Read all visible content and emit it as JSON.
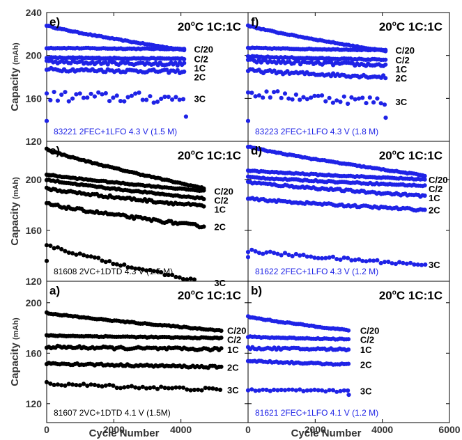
{
  "chart_data": {
    "type": "scatter",
    "x_title": "Cycle Number",
    "y_title": "Capacity",
    "y_unit": "(mAh)",
    "x_ticks": [
      0,
      2000,
      4000,
      6000
    ],
    "condition": {
      "main": "20",
      "sup": "o",
      "rest": "C 1C:1C"
    },
    "colors": {
      "black_group": "#000000",
      "blue_group": "#1f23e6"
    },
    "rows": [
      {
        "id": "top",
        "ylim": [
          120,
          240
        ],
        "y_ticks": [
          120,
          160,
          200,
          240
        ]
      },
      {
        "id": "middle",
        "ylim": [
          120,
          230
        ],
        "y_ticks": [
          120,
          160,
          200
        ]
      },
      {
        "id": "bottom",
        "ylim": [
          105,
          217
        ],
        "y_ticks": [
          120,
          160,
          200
        ]
      }
    ],
    "panels": [
      {
        "letter": "e)",
        "row": 0,
        "col": 0,
        "color": "#1f23e6",
        "note": "83221 2FEC+1LFO 4.3 V (1.5 M)",
        "xmax": 4100,
        "series": [
          {
            "name": "C/20",
            "start": 207,
            "end": 206,
            "noise": 0.4
          },
          {
            "name": "C/2",
            "start": 198,
            "end": 197,
            "noise": 0.5
          },
          {
            "name": "1C",
            "start": 194,
            "end": 192,
            "noise": 1.5
          },
          {
            "name": "2C",
            "start": 187,
            "end": 185,
            "noise": 1.5
          },
          {
            "name": "3C",
            "start": 162,
            "end": 160,
            "noise": 5.0
          }
        ],
        "extra": {
          "start": 228,
          "end": 205
        },
        "outliers": [
          {
            "x": 0,
            "y": 139
          },
          {
            "x": 4150,
            "y": 143
          }
        ]
      },
      {
        "letter": "f)",
        "row": 0,
        "col": 1,
        "color": "#1f23e6",
        "note": "83223 2FEC+1LFO 4.3 V (1.8 M)",
        "xmax": 4100,
        "series": [
          {
            "name": "C/20",
            "start": 207,
            "end": 205,
            "noise": 0.4
          },
          {
            "name": "C/2",
            "start": 199,
            "end": 196,
            "noise": 0.5
          },
          {
            "name": "1C",
            "start": 195,
            "end": 191,
            "noise": 1.5
          },
          {
            "name": "2C",
            "start": 186,
            "end": 180,
            "noise": 1.5
          },
          {
            "name": "3C",
            "start": 165,
            "end": 157,
            "noise": 4.0
          }
        ],
        "extra": {
          "start": 228,
          "end": 204
        },
        "outliers": [
          {
            "x": 0,
            "y": 139
          },
          {
            "x": 4100,
            "y": 142
          }
        ]
      },
      {
        "letter": "c)",
        "row": 1,
        "col": 0,
        "color": "#000000",
        "note": "81608 2VC+1DTD 4.3 V (1.5 M)",
        "xmax": 4700,
        "series": [
          {
            "name": "C/20",
            "start": 204,
            "end": 191,
            "noise": 0.4
          },
          {
            "name": "C/2",
            "start": 200,
            "end": 185,
            "noise": 0.5
          },
          {
            "name": "1C",
            "start": 193,
            "end": 179,
            "noise": 1.0
          },
          {
            "name": "2C",
            "start": 181,
            "end": 163,
            "noise": 1.0
          },
          {
            "name": "3C",
            "start": 149,
            "end": 119,
            "noise": 1.0
          }
        ],
        "extra": {
          "start": 224,
          "end": 193
        },
        "outliers": [
          {
            "x": 0,
            "y": 136
          }
        ]
      },
      {
        "letter": "d)",
        "row": 1,
        "col": 1,
        "color": "#1f23e6",
        "note": "81622 2FEC+1LFO 4.3 V (1.2 M)",
        "xmax": 5300,
        "series": [
          {
            "name": "C/20",
            "start": 207,
            "end": 200,
            "noise": 0.4
          },
          {
            "name": "C/2",
            "start": 202,
            "end": 195,
            "noise": 0.5
          },
          {
            "name": "1C",
            "start": 198,
            "end": 187,
            "noise": 0.8
          },
          {
            "name": "2C",
            "start": 185,
            "end": 176,
            "noise": 0.8
          },
          {
            "name": "3C",
            "start": 144,
            "end": 133,
            "noise": 1.2
          }
        ],
        "extra": {
          "start": 226,
          "end": 203
        },
        "outliers": [
          {
            "x": 0,
            "y": 139
          }
        ]
      },
      {
        "letter": "a)",
        "row": 2,
        "col": 0,
        "color": "#000000",
        "note": "81607 2VC+1DTD 4.1 V (1.5M)",
        "xmax": 5200,
        "series": [
          {
            "name": "C/20",
            "start": 192,
            "end": 178,
            "noise": 0.4
          },
          {
            "name": "C/2",
            "start": 174,
            "end": 172,
            "noise": 0.4
          },
          {
            "name": "1C",
            "start": 165,
            "end": 163,
            "noise": 1.0
          },
          {
            "name": "2C",
            "start": 152,
            "end": 149,
            "noise": 0.8
          },
          {
            "name": "3C",
            "start": 136,
            "end": 131,
            "noise": 1.2
          }
        ],
        "extra": null,
        "outliers": []
      },
      {
        "letter": "b)",
        "row": 2,
        "col": 1,
        "color": "#1f23e6",
        "note": "81621 2FEC+1LFO 4.1 V (1.2 M)",
        "xmax": 3050,
        "series": [
          {
            "name": "C/20",
            "start": 189,
            "end": 178,
            "noise": 0.4
          },
          {
            "name": "C/2",
            "start": 173,
            "end": 171,
            "noise": 0.4
          },
          {
            "name": "1C",
            "start": 164,
            "end": 163,
            "noise": 0.8
          },
          {
            "name": "2C",
            "start": 154,
            "end": 151,
            "noise": 0.6
          },
          {
            "name": "3C",
            "start": 131,
            "end": 130,
            "noise": 0.8
          }
        ],
        "extra": null,
        "outliers": [
          {
            "x": 3000,
            "y": 127
          }
        ]
      }
    ]
  }
}
